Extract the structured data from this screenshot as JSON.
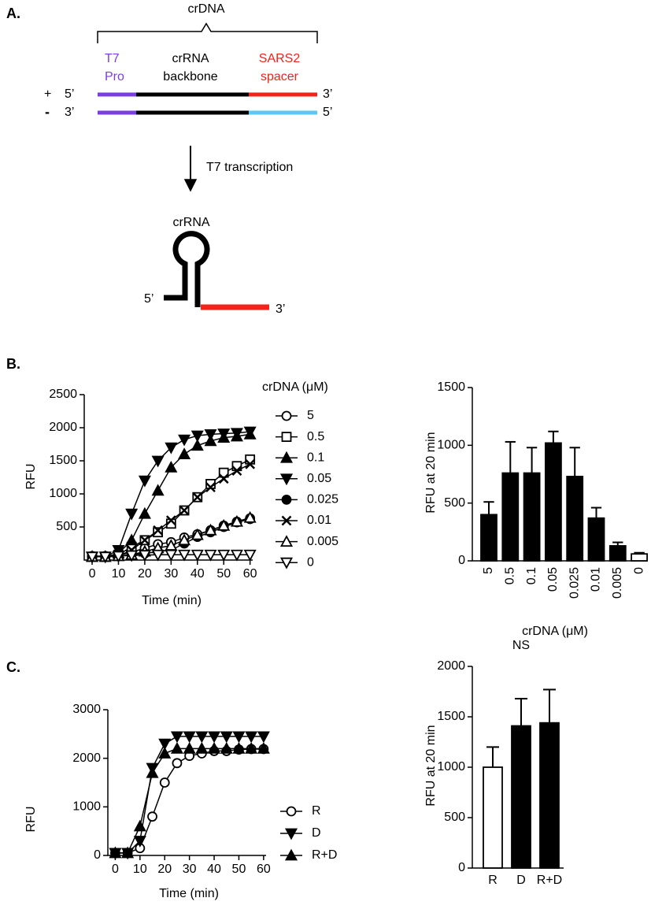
{
  "panel_labels": [
    "A.",
    "B.",
    "C."
  ],
  "diagram": {
    "bracket_label": "crDNA",
    "segment_labels": [
      [
        "T7",
        "Pro"
      ],
      [
        "crRNA",
        "backbone"
      ],
      [
        "SARS2",
        "spacer"
      ]
    ],
    "plus_strand": {
      "sign": "+",
      "left_end": "5’",
      "right_end": "3’"
    },
    "minus_strand": {
      "sign": "-",
      "left_end": "3’",
      "right_end": "5’"
    },
    "arrow_label": "T7 transcription",
    "product": {
      "label": "crRNA",
      "left_end": "5’",
      "right_end": "3’"
    }
  },
  "chart_data": [
    {
      "type": "line",
      "x_label": "Time (min)",
      "y_label": "RFU",
      "legend_title": "crDNA (μM)",
      "x": [
        0,
        5,
        10,
        15,
        20,
        25,
        30,
        35,
        40,
        45,
        50,
        55,
        60
      ],
      "xlim": [
        -3,
        61
      ],
      "xticks": [
        0,
        10,
        20,
        30,
        40,
        50,
        60
      ],
      "ylim": [
        0,
        2500
      ],
      "yticks": [
        500,
        1000,
        1500,
        2000,
        2500
      ],
      "series": [
        {
          "name": "5",
          "color": "#000000",
          "marker": "circle-open",
          "values": [
            60,
            60,
            70,
            120,
            180,
            240,
            270,
            340,
            390,
            450,
            520,
            580,
            630
          ]
        },
        {
          "name": "0.5",
          "color": "#000000",
          "marker": "square-open",
          "values": [
            50,
            50,
            80,
            200,
            300,
            420,
            550,
            750,
            950,
            1150,
            1320,
            1420,
            1520
          ]
        },
        {
          "name": "0.1",
          "color": "#000000",
          "marker": "triangle-up",
          "values": [
            50,
            50,
            100,
            300,
            700,
            1050,
            1400,
            1600,
            1730,
            1800,
            1850,
            1870,
            1900
          ]
        },
        {
          "name": "0.05",
          "color": "#000000",
          "marker": "triangle-down",
          "values": [
            50,
            50,
            150,
            700,
            1200,
            1500,
            1700,
            1820,
            1880,
            1900,
            1910,
            1920,
            1940
          ]
        },
        {
          "name": "0.025",
          "color": "#000000",
          "marker": "circle",
          "values": [
            50,
            50,
            60,
            80,
            100,
            130,
            150,
            250,
            350,
            420,
            500,
            570,
            620
          ]
        },
        {
          "name": "0.01",
          "color": "#000000",
          "marker": "x",
          "values": [
            50,
            50,
            60,
            150,
            300,
            450,
            600,
            750,
            950,
            1100,
            1230,
            1350,
            1450
          ]
        },
        {
          "name": "0.005",
          "color": "#000000",
          "marker": "triangle-up-open",
          "values": [
            50,
            50,
            60,
            80,
            130,
            180,
            220,
            300,
            380,
            450,
            520,
            580,
            640
          ]
        },
        {
          "name": "0",
          "color": "#000000",
          "marker": "triangle-down-open",
          "values": [
            50,
            50,
            60,
            70,
            75,
            80,
            80,
            80,
            80,
            80,
            80,
            80,
            80
          ]
        }
      ]
    },
    {
      "type": "bar",
      "x_label": "crDNA (μM)",
      "y_label": "RFU at 20 min",
      "categories": [
        "5",
        "0.5",
        "0.1",
        "0.05",
        "0.025",
        "0.01",
        "0.005",
        "0"
      ],
      "values": [
        400,
        760,
        760,
        1020,
        730,
        370,
        130,
        60
      ],
      "errors": [
        110,
        270,
        220,
        100,
        250,
        90,
        30,
        10
      ],
      "colors": [
        "#000000",
        "#000000",
        "#000000",
        "#000000",
        "#000000",
        "#000000",
        "#000000",
        "#ffffff"
      ],
      "ylim": [
        0,
        1500
      ],
      "yticks": [
        0,
        500,
        1000,
        1500
      ]
    },
    {
      "type": "line",
      "x_label": "Time (min)",
      "y_label": "RFU",
      "x": [
        0,
        5,
        10,
        15,
        20,
        25,
        30,
        35,
        40,
        45,
        50,
        55,
        60
      ],
      "xlim": [
        -3,
        61
      ],
      "xticks": [
        0,
        10,
        20,
        30,
        40,
        50,
        60
      ],
      "ylim": [
        0,
        3000
      ],
      "yticks": [
        0,
        1000,
        2000,
        3000
      ],
      "series": [
        {
          "name": "R",
          "color": "#000000",
          "marker": "circle-open",
          "values": [
            50,
            50,
            150,
            800,
            1500,
            1900,
            2050,
            2100,
            2150,
            2150,
            2180,
            2190,
            2190
          ]
        },
        {
          "name": "D",
          "color": "#000000",
          "marker": "triangle-down",
          "values": [
            50,
            50,
            300,
            1800,
            2300,
            2450,
            2450,
            2450,
            2450,
            2450,
            2450,
            2450,
            2450
          ]
        },
        {
          "name": "R+D",
          "color": "#000000",
          "marker": "triangle-up",
          "values": [
            50,
            50,
            600,
            1700,
            2100,
            2200,
            2200,
            2200,
            2200,
            2200,
            2200,
            2200,
            2200
          ]
        }
      ]
    },
    {
      "type": "bar",
      "y_label": "RFU at 20 min",
      "annotation": "NS",
      "categories": [
        "R",
        "D",
        "R+D"
      ],
      "values": [
        1000,
        1410,
        1440
      ],
      "errors": [
        200,
        270,
        330
      ],
      "colors": [
        "#ffffff",
        "#000000",
        "#000000"
      ],
      "ylim": [
        0,
        2000
      ],
      "yticks": [
        0,
        500,
        1000,
        1500,
        2000
      ]
    }
  ]
}
